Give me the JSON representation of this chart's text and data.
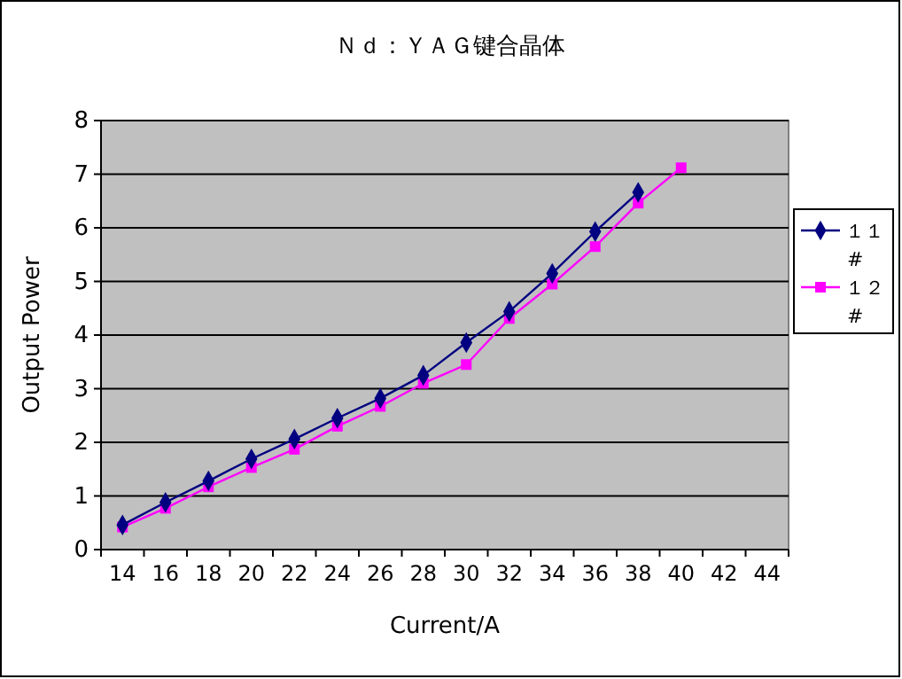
{
  "chart_data": {
    "type": "line",
    "title": "Ｎｄ：ＹＡＧ键合晶体",
    "xlabel": "Current/A",
    "ylabel": "Output Power",
    "categories": [
      "14",
      "16",
      "18",
      "20",
      "22",
      "24",
      "26",
      "28",
      "30",
      "32",
      "34",
      "36",
      "38",
      "40",
      "42",
      "44"
    ],
    "series": [
      {
        "name": "１１#",
        "color": "#000080",
        "marker": "diamond",
        "values": [
          0.46,
          0.88,
          1.28,
          1.69,
          2.06,
          2.45,
          2.82,
          3.25,
          3.86,
          4.44,
          5.15,
          5.93,
          6.66,
          null,
          null,
          null
        ]
      },
      {
        "name": "１２#",
        "color": "#ff00ff",
        "marker": "square",
        "values": [
          0.42,
          0.77,
          1.17,
          1.53,
          1.87,
          2.3,
          2.67,
          3.1,
          3.45,
          4.31,
          4.95,
          5.65,
          6.46,
          7.12,
          null,
          null
        ]
      }
    ],
    "ylim": [
      0,
      8
    ],
    "yticks": [
      0,
      1,
      2,
      3,
      4,
      5,
      6,
      7,
      8
    ],
    "grid": "y",
    "legend": "right"
  }
}
